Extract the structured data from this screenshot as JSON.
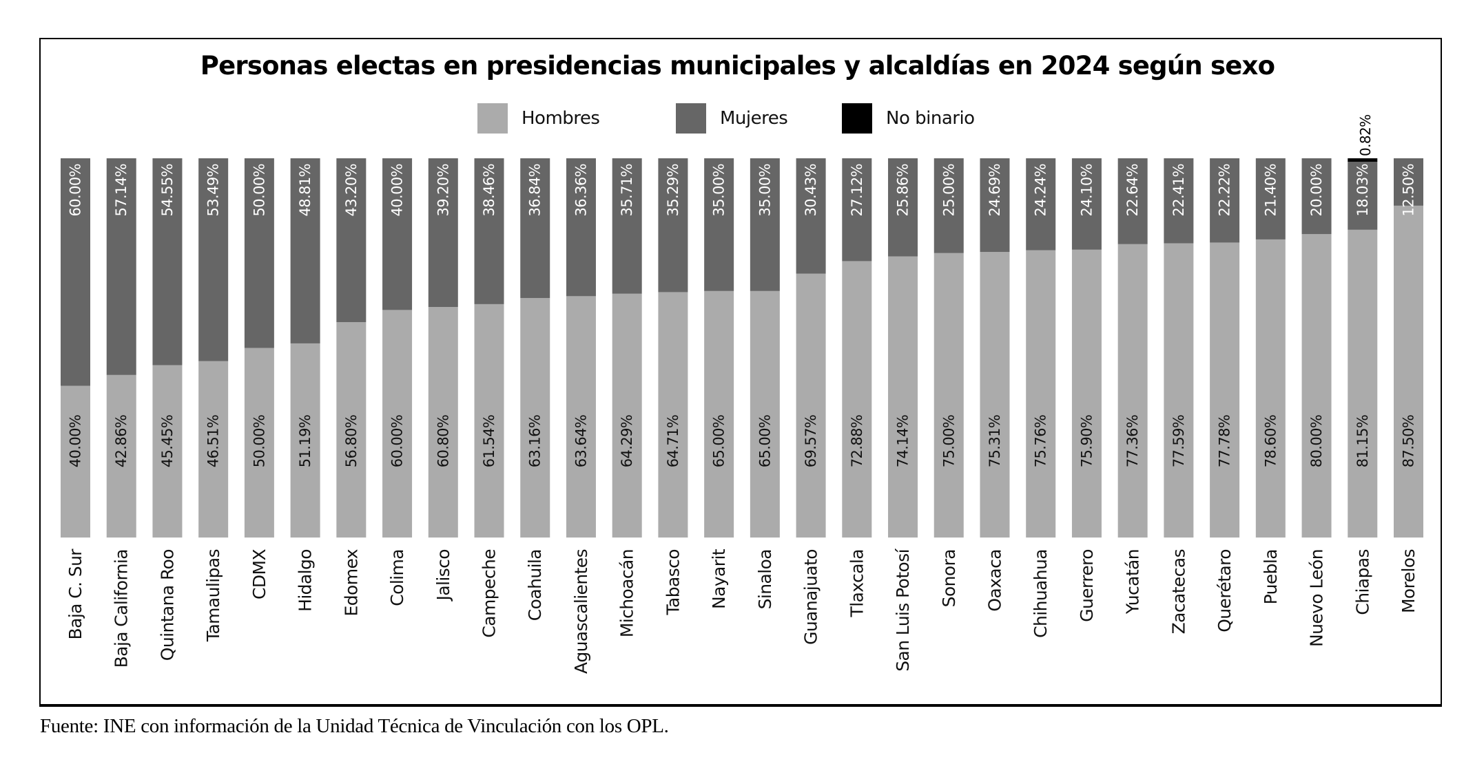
{
  "chart_data": {
    "type": "bar",
    "stacked": true,
    "percent": true,
    "title": "Personas electas en presidencias municipales y alcaldías en 2024 según sexo",
    "xlabel": "",
    "ylabel": "",
    "ylim": [
      0,
      100
    ],
    "grid": false,
    "legend_position": "top-center",
    "legend": [
      {
        "name": "Hombres",
        "color": "#ababab"
      },
      {
        "name": "Mujeres",
        "color": "#666666"
      },
      {
        "name": "No binario",
        "color": "#000000"
      }
    ],
    "categories": [
      "Baja C. Sur",
      "Baja California",
      "Quintana Roo",
      "Tamaulipas",
      "CDMX",
      "Hidalgo",
      "Edomex",
      "Colima",
      "Jalisco",
      "Campeche",
      "Coahuila",
      "Aguascalientes",
      "Michoacán",
      "Tabasco",
      "Nayarit",
      "Sinaloa",
      "Guanajuato",
      "Tlaxcala",
      "San Luis Potosí",
      "Sonora",
      "Oaxaca",
      "Chihuahua",
      "Guerrero",
      "Yucatán",
      "Zacatecas",
      "Querétaro",
      "Puebla",
      "Nuevo León",
      "Chiapas",
      "Morelos"
    ],
    "series": [
      {
        "name": "Hombres",
        "values": [
          40.0,
          42.86,
          45.45,
          46.51,
          50.0,
          51.19,
          56.8,
          60.0,
          60.8,
          61.54,
          63.16,
          63.64,
          64.29,
          64.71,
          65.0,
          65.0,
          69.57,
          72.88,
          74.14,
          75.0,
          75.31,
          75.76,
          75.9,
          77.36,
          77.59,
          77.78,
          78.6,
          80.0,
          81.15,
          87.5
        ]
      },
      {
        "name": "Mujeres",
        "values": [
          60.0,
          57.14,
          54.55,
          53.49,
          50.0,
          48.81,
          43.2,
          40.0,
          39.2,
          38.46,
          36.84,
          36.36,
          35.71,
          35.29,
          35.0,
          35.0,
          30.43,
          27.12,
          25.86,
          25.0,
          24.69,
          24.24,
          24.1,
          22.64,
          22.41,
          22.22,
          21.4,
          20.0,
          18.03,
          12.5
        ]
      },
      {
        "name": "No binario",
        "values": [
          0,
          0,
          0,
          0,
          0,
          0,
          0,
          0,
          0,
          0,
          0,
          0,
          0,
          0,
          0,
          0,
          0,
          0,
          0,
          0,
          0,
          0,
          0,
          0,
          0,
          0,
          0,
          0,
          0.82,
          0
        ]
      }
    ],
    "data_labels": {
      "Hombres": [
        "40.00%",
        "42.86%",
        "45.45%",
        "46.51%",
        "50.00%",
        "51.19%",
        "56.80%",
        "60.00%",
        "60.80%",
        "61.54%",
        "63.16%",
        "63.64%",
        "64.29%",
        "64.71%",
        "65.00%",
        "65.00%",
        "69.57%",
        "72.88%",
        "74.14%",
        "75.00%",
        "75.31%",
        "75.76%",
        "75.90%",
        "77.36%",
        "77.59%",
        "77.78%",
        "78.60%",
        "80.00%",
        "81.15%",
        "87.50%"
      ],
      "Mujeres": [
        "60.00%",
        "57.14%",
        "54.55%",
        "53.49%",
        "50.00%",
        "48.81%",
        "43.20%",
        "40.00%",
        "39.20%",
        "38.46%",
        "36.84%",
        "36.36%",
        "35.71%",
        "35.29%",
        "35.00%",
        "35.00%",
        "30.43%",
        "27.12%",
        "25.86%",
        "25.00%",
        "24.69%",
        "24.24%",
        "24.10%",
        "22.64%",
        "22.41%",
        "22.22%",
        "21.40%",
        "20.00%",
        "18.03%",
        "12.50%"
      ],
      "No binario": [
        "",
        "",
        "",
        "",
        "",
        "",
        "",
        "",
        "",
        "",
        "",
        "",
        "",
        "",
        "",
        "",
        "",
        "",
        "",
        "",
        "",
        "",
        "",
        "",
        "",
        "",
        "",
        "",
        "0.82%",
        ""
      ]
    }
  },
  "source": "Fuente: INE con información de la Unidad Técnica de Vinculación con los OPL."
}
